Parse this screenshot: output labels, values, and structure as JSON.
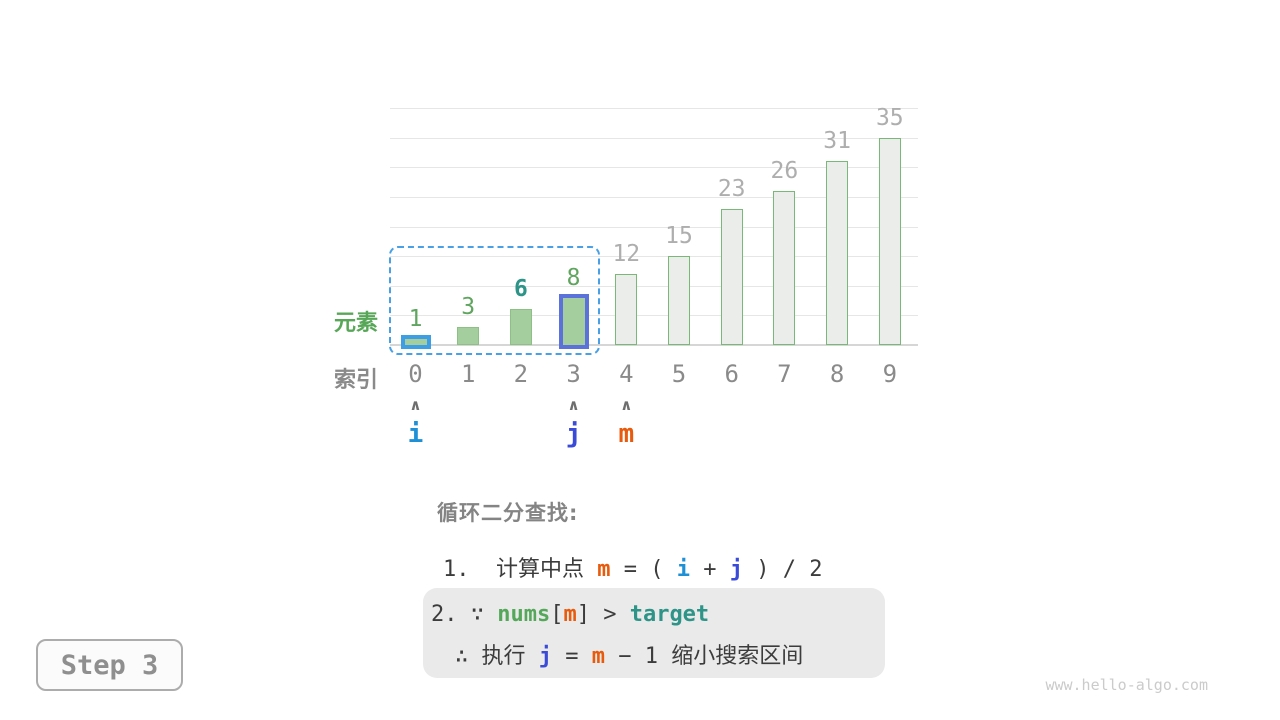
{
  "chart_data": {
    "type": "bar",
    "categories": [
      "0",
      "1",
      "2",
      "3",
      "4",
      "5",
      "6",
      "7",
      "8",
      "9"
    ],
    "values": [
      1,
      3,
      6,
      8,
      12,
      15,
      23,
      26,
      31,
      35
    ],
    "ylim": [
      0,
      40
    ],
    "gridline_step": 5,
    "grid": true,
    "row_labels": {
      "element": "元素",
      "index": "索引"
    },
    "active_range": {
      "start": 0,
      "end": 3
    },
    "target_index": 2,
    "caret_glyph": "∧",
    "pointers": [
      {
        "label": "i",
        "index": 0,
        "color": "#1E90D6"
      },
      {
        "label": "j",
        "index": 3,
        "color": "#3A4BD8"
      },
      {
        "label": "m",
        "index": 4,
        "color": "#E85A0C"
      }
    ],
    "bar_highlights": [
      {
        "index": 0,
        "border_color": "#3E9EE3"
      },
      {
        "index": 3,
        "border_color": "#5B72DB"
      }
    ]
  },
  "annotation": {
    "title": "循环二分查找:",
    "step1": {
      "t1": "1.  计算中点 ",
      "m": "m",
      "t2": " = ( ",
      "i": "i",
      "t3": " + ",
      "j": "j",
      "t4": " ) / 2"
    },
    "step2": {
      "t1": "2. ∵ ",
      "nums": "nums",
      "t2": "[",
      "m": "m",
      "t3": "] > ",
      "target": "target"
    },
    "step3": {
      "t1": "∴ 执行 ",
      "j": "j",
      "t2": " = ",
      "m": "m",
      "t3": " − 1 缩小搜索区间"
    }
  },
  "step_badge": "Step 3",
  "watermark": "www.hello-algo.com",
  "colors": {
    "bar_fill_green": "#A4CE9E",
    "bar_fill_gray": "#EBEDEA",
    "bar_border_green": "#7AB877",
    "highlight_i_blue": "#3E9EE3",
    "highlight_j_indigo": "#5B72DB",
    "range_dashed_blue": "#49A0E6",
    "pointer_i": "#1E90D6",
    "pointer_j": "#3A4BD8",
    "pointer_m": "#E85A0C",
    "nums_green": "#55A85A",
    "target_teal": "#2E9488",
    "value_label_green": "#5FA55F",
    "value_label_gray": "#AEAEAE",
    "index_gray": "#8A8A8A",
    "element_label_green": "#58A758",
    "text_dark": "#3C3C3C",
    "title_gray": "#848484",
    "box_bg": "#EAEAEA"
  }
}
